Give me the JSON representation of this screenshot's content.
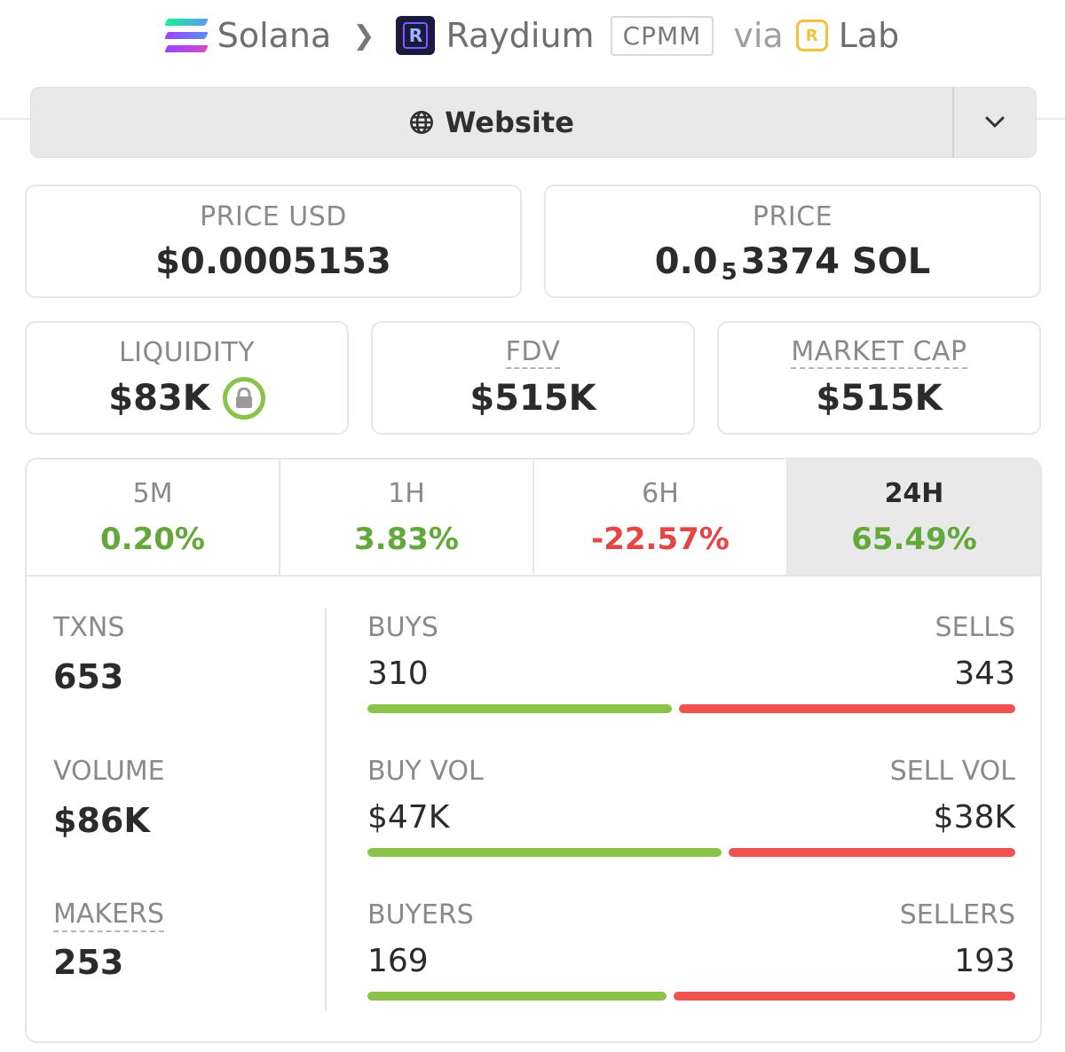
{
  "breadcrumb": {
    "chain": "Solana",
    "dex": "Raydium",
    "pool_type": "CPMM",
    "via": "via",
    "launchpad": "Lab"
  },
  "website": {
    "label": "Website"
  },
  "price_usd": {
    "label": "PRICE USD",
    "value": "$0.0005153"
  },
  "price": {
    "label": "PRICE",
    "prefix": "0.0",
    "zeros": "5",
    "suffix": "3374 SOL"
  },
  "liquidity": {
    "label": "LIQUIDITY",
    "value": "$83K"
  },
  "fdv": {
    "label": "FDV",
    "value": "$515K"
  },
  "market_cap": {
    "label": "MARKET CAP",
    "value": "$515K"
  },
  "timeframes": [
    {
      "name": "5M",
      "change": "0.20%",
      "direction": "up"
    },
    {
      "name": "1H",
      "change": "3.83%",
      "direction": "up"
    },
    {
      "name": "6H",
      "change": "-22.57%",
      "direction": "down"
    },
    {
      "name": "24H",
      "change": "65.49%",
      "direction": "up",
      "active": true
    }
  ],
  "stats": {
    "txns": {
      "label": "TXNS",
      "value": "653"
    },
    "volume": {
      "label": "VOLUME",
      "value": "$86K"
    },
    "makers": {
      "label": "MAKERS",
      "value": "253"
    },
    "buys": {
      "label": "BUYS",
      "value": "310",
      "num": 310
    },
    "sells": {
      "label": "SELLS",
      "value": "343",
      "num": 343
    },
    "buy_vol": {
      "label": "BUY VOL",
      "value": "$47K",
      "num": 47
    },
    "sell_vol": {
      "label": "SELL VOL",
      "value": "$38K",
      "num": 38
    },
    "buyers": {
      "label": "BUYERS",
      "value": "169",
      "num": 169
    },
    "sellers": {
      "label": "SELLERS",
      "value": "193",
      "num": 193
    }
  },
  "colors": {
    "positive": "#62a83a",
    "negative": "#e54545",
    "buy_bar": "#8bc34a",
    "sell_bar": "#ef5350"
  }
}
